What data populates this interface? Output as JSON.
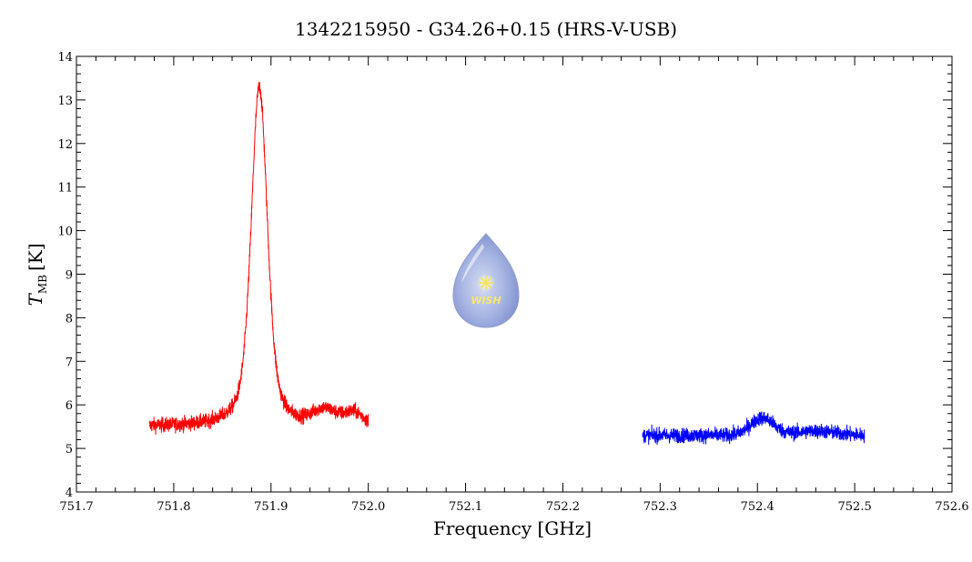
{
  "chart_data": {
    "type": "line",
    "title": "1342215950 - G34.26+0.15 (HRS-V-USB)",
    "xlabel": "Frequency [GHz]",
    "ylabel": "T",
    "ylabel_sub": "MB",
    "ylabel_unit": "[K]",
    "xlim": [
      751.7,
      752.6
    ],
    "ylim": [
      4,
      14
    ],
    "x_ticks": [
      "751.7",
      "751.8",
      "751.9",
      "752.0",
      "752.1",
      "752.2",
      "752.3",
      "752.4",
      "752.5",
      "752.6"
    ],
    "y_ticks": [
      "4",
      "5",
      "6",
      "7",
      "8",
      "9",
      "10",
      "11",
      "12",
      "13",
      "14"
    ],
    "grid": false,
    "series": [
      {
        "color": "#ff0000",
        "x_range": [
          751.775,
          752.0
        ],
        "baseline": 5.5,
        "noise": 0.12,
        "features": [
          {
            "type": "peak",
            "center": 751.888,
            "amplitude": 7.8,
            "width": 0.012
          },
          {
            "type": "bump",
            "center": 751.955,
            "amplitude": 0.35,
            "width": 0.012
          },
          {
            "type": "bump",
            "center": 751.985,
            "amplitude": 0.3,
            "width": 0.01
          }
        ]
      },
      {
        "color": "#0000ff",
        "x_range": [
          752.282,
          752.51
        ],
        "baseline": 5.3,
        "noise": 0.12,
        "features": [
          {
            "type": "bump",
            "center": 752.405,
            "amplitude": 0.4,
            "width": 0.012
          },
          {
            "type": "bump",
            "center": 752.46,
            "amplitude": 0.1,
            "width": 0.02
          }
        ]
      }
    ],
    "logo_text": "WISH"
  }
}
